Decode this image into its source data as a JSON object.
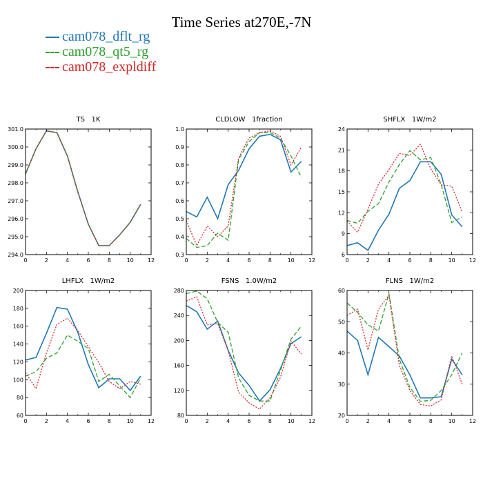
{
  "page": {
    "title": "Time Series at270E,-7N"
  },
  "legend": [
    {
      "name": "cam078_dflt_rg",
      "color": "#1f77b4",
      "dash": "solid"
    },
    {
      "name": "cam078_qt5_rg",
      "color": "#2ca02c",
      "dash": "dashed"
    },
    {
      "name": "cam078_expldiff",
      "color": "#d62728",
      "dash": "dotted"
    }
  ],
  "chart_data": [
    {
      "type": "line",
      "title": "TS   1K",
      "xlim": [
        0,
        12
      ],
      "xticks": [
        0,
        2,
        4,
        6,
        8,
        10,
        12
      ],
      "ylim": [
        294.0,
        301.0
      ],
      "yticks": [
        "294.0",
        "295.0",
        "296.0",
        "297.0",
        "298.0",
        "299.0",
        "300.0",
        "301.0"
      ],
      "x": [
        0,
        1,
        2,
        3,
        4,
        5,
        6,
        7,
        8,
        9,
        10,
        11
      ],
      "series": [
        {
          "name": "cam078_dflt_rg",
          "values": [
            298.5,
            299.9,
            300.9,
            300.8,
            299.5,
            297.5,
            295.7,
            294.5,
            294.5,
            295.1,
            295.8,
            296.8
          ]
        },
        {
          "name": "cam078_qt5_rg",
          "values": [
            298.5,
            299.9,
            300.9,
            300.8,
            299.5,
            297.5,
            295.7,
            294.5,
            294.5,
            295.1,
            295.8,
            296.8
          ]
        },
        {
          "name": "cam078_expldiff",
          "values": [
            298.5,
            299.9,
            300.9,
            300.8,
            299.5,
            297.5,
            295.7,
            294.5,
            294.5,
            295.1,
            295.8,
            296.8
          ]
        }
      ]
    },
    {
      "type": "line",
      "title": "CLDLOW   1fraction",
      "xlim": [
        0,
        12
      ],
      "xticks": [
        0,
        2,
        4,
        6,
        8,
        10,
        12
      ],
      "ylim": [
        0.3,
        1.0
      ],
      "yticks": [
        "0.3",
        "0.4",
        "0.5",
        "0.6",
        "0.7",
        "0.8",
        "0.9",
        "1.0"
      ],
      "x": [
        0,
        1,
        2,
        3,
        4,
        5,
        6,
        7,
        8,
        9,
        10,
        11
      ],
      "series": [
        {
          "name": "cam078_dflt_rg",
          "values": [
            0.54,
            0.51,
            0.62,
            0.5,
            0.69,
            0.77,
            0.89,
            0.96,
            0.97,
            0.94,
            0.76,
            0.82
          ]
        },
        {
          "name": "cam078_qt5_rg",
          "values": [
            0.39,
            0.34,
            0.35,
            0.42,
            0.38,
            0.83,
            0.93,
            0.98,
            0.98,
            0.95,
            0.85,
            0.73
          ]
        },
        {
          "name": "cam078_expldiff",
          "values": [
            0.49,
            0.35,
            0.46,
            0.4,
            0.46,
            0.84,
            0.95,
            0.98,
            0.99,
            0.96,
            0.8,
            0.9
          ]
        }
      ]
    },
    {
      "type": "line",
      "title": "SHFLX   1W/m2",
      "xlim": [
        0,
        12
      ],
      "xticks": [
        0,
        2,
        4,
        6,
        8,
        10,
        12
      ],
      "ylim": [
        6,
        24
      ],
      "yticks": [
        "6",
        "9",
        "12",
        "15",
        "18",
        "21",
        "24"
      ],
      "x": [
        0,
        1,
        2,
        3,
        4,
        5,
        6,
        7,
        8,
        9,
        10,
        11
      ],
      "series": [
        {
          "name": "cam078_dflt_rg",
          "values": [
            7.3,
            7.7,
            6.6,
            9.5,
            11.8,
            15.5,
            16.6,
            19.3,
            19.3,
            17.5,
            11.7,
            10.0
          ]
        },
        {
          "name": "cam078_qt5_rg",
          "values": [
            10.9,
            10.5,
            12.2,
            13.3,
            16.4,
            18.9,
            20.9,
            19.6,
            19.9,
            16.0,
            10.6,
            11.4
          ]
        },
        {
          "name": "cam078_expldiff",
          "values": [
            10.8,
            9.2,
            12.5,
            16.1,
            18.2,
            20.5,
            20.2,
            21.8,
            18.3,
            16.0,
            15.8,
            12.1
          ]
        }
      ]
    },
    {
      "type": "line",
      "title": "LHFLX   1W/m2",
      "xlim": [
        0,
        12
      ],
      "xticks": [
        0,
        2,
        4,
        6,
        8,
        10,
        12
      ],
      "ylim": [
        60,
        200
      ],
      "yticks": [
        "60",
        "80",
        "100",
        "120",
        "140",
        "160",
        "180",
        "200"
      ],
      "x": [
        0,
        1,
        2,
        3,
        4,
        5,
        6,
        7,
        8,
        9,
        10,
        11
      ],
      "series": [
        {
          "name": "cam078_dflt_rg",
          "values": [
            122,
            125,
            152,
            181,
            179,
            153,
            117,
            91,
            101,
            101,
            88,
            104
          ]
        },
        {
          "name": "cam078_qt5_rg",
          "values": [
            104,
            109,
            124,
            130,
            150,
            143,
            135,
            98,
            106,
            93,
            80,
            102
          ]
        },
        {
          "name": "cam078_expldiff",
          "values": [
            108,
            90,
            130,
            162,
            169,
            155,
            137,
            119,
            98,
            90,
            98,
            95
          ]
        }
      ]
    },
    {
      "type": "line",
      "title": "FSNS   1.0W/m2",
      "xlim": [
        0,
        12
      ],
      "xticks": [
        0,
        2,
        4,
        6,
        8,
        10,
        12
      ],
      "ylim": [
        80,
        280
      ],
      "yticks": [
        "80",
        "120",
        "160",
        "200",
        "240",
        "280"
      ],
      "x": [
        0,
        1,
        2,
        3,
        4,
        5,
        6,
        7,
        8,
        9,
        10,
        11
      ],
      "series": [
        {
          "name": "cam078_dflt_rg",
          "values": [
            256,
            246,
            218,
            231,
            184,
            148,
            128,
            103,
            121,
            155,
            195,
            206
          ]
        },
        {
          "name": "cam078_qt5_rg",
          "values": [
            275,
            279,
            267,
            229,
            213,
            140,
            112,
            103,
            103,
            152,
            202,
            223
          ]
        },
        {
          "name": "cam078_expldiff",
          "values": [
            263,
            270,
            225,
            227,
            184,
            117,
            100,
            90,
            108,
            141,
            199,
            178
          ]
        }
      ]
    },
    {
      "type": "line",
      "title": "FLNS   1W/m2",
      "xlim": [
        0,
        12
      ],
      "xticks": [
        0,
        2,
        4,
        6,
        8,
        10,
        12
      ],
      "ylim": [
        20,
        60
      ],
      "yticks": [
        "20",
        "30",
        "40",
        "50",
        "60"
      ],
      "x": [
        0,
        1,
        2,
        3,
        4,
        5,
        6,
        7,
        8,
        9,
        10,
        11
      ],
      "series": [
        {
          "name": "cam078_dflt_rg",
          "values": [
            47,
            44,
            33,
            45,
            42,
            39,
            33,
            25.6,
            25.6,
            26,
            38,
            33
          ]
        },
        {
          "name": "cam078_qt5_rg",
          "values": [
            56,
            53,
            49,
            47,
            59,
            38,
            29,
            24.5,
            24.8,
            28,
            33,
            40
          ]
        },
        {
          "name": "cam078_expldiff",
          "values": [
            52,
            54,
            41,
            54,
            58.5,
            36,
            28,
            23.5,
            23,
            25,
            39,
            30
          ]
        }
      ]
    }
  ]
}
